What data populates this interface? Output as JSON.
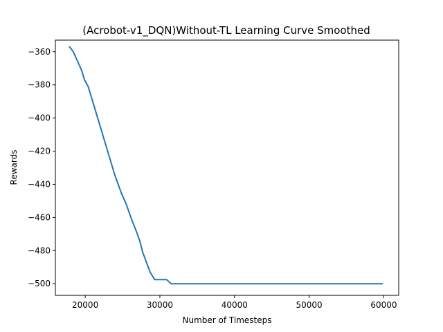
{
  "chart_data": {
    "type": "line",
    "title": "(Acrobot-v1_DQN)Without-TL Learning Curve Smoothed",
    "xlabel": "Number of Timesteps",
    "ylabel": "Rewards",
    "xlim": [
      16000,
      62000
    ],
    "ylim": [
      -507,
      -353
    ],
    "xticks": [
      20000,
      30000,
      40000,
      50000,
      60000
    ],
    "xtick_labels": [
      "20000",
      "30000",
      "40000",
      "50000",
      "60000"
    ],
    "yticks": [
      -360,
      -380,
      -400,
      -420,
      -440,
      -460,
      -480,
      -500
    ],
    "ytick_labels": [
      "−360",
      "−380",
      "−400",
      "−420",
      "−440",
      "−460",
      "−480",
      "−500"
    ],
    "grid": false,
    "line_color": "#1f77b4",
    "series": [
      {
        "x": [
          17900,
          18400,
          19000,
          19500,
          19900,
          20400,
          21000,
          22000,
          23000,
          24000,
          24900,
          25500,
          26200,
          26900,
          27300,
          27700,
          28200,
          28700,
          29300,
          29800,
          30400,
          30900,
          31500,
          32000,
          33000,
          35000,
          40000,
          45000,
          50000,
          55000,
          59800
        ],
        "y": [
          -357,
          -360,
          -366,
          -371,
          -377,
          -381,
          -390,
          -405,
          -420,
          -435,
          -446,
          -452,
          -461,
          -469,
          -474,
          -481,
          -487,
          -493,
          -497.5,
          -497.5,
          -497.5,
          -497.5,
          -500,
          -500,
          -500,
          -500,
          -500,
          -500,
          -500,
          -500,
          -500
        ]
      }
    ]
  }
}
